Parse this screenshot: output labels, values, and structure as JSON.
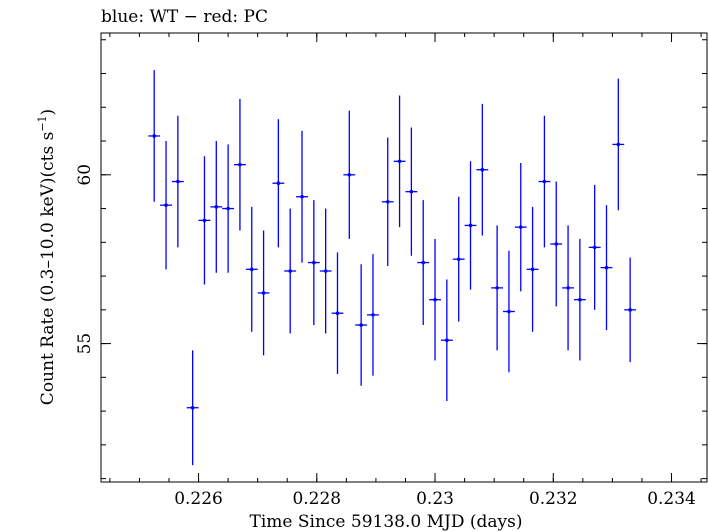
{
  "chart_data": {
    "type": "scatter",
    "title": "blue: WT − red: PC",
    "xlabel": "Time Since 59138.0 MJD (days)",
    "ylabel_main": "Count Rate (0.3–10.0 keV)(cts s",
    "ylabel_exp": "−1",
    "ylabel_tail": ")",
    "xlim": [
      0.22435,
      0.2346
    ],
    "ylim": [
      50.9,
      64.2
    ],
    "x_ticks": [
      {
        "value": 0.226,
        "label": "0.226"
      },
      {
        "value": 0.228,
        "label": "0.228"
      },
      {
        "value": 0.23,
        "label": "0.23"
      },
      {
        "value": 0.232,
        "label": "0.232"
      },
      {
        "value": 0.234,
        "label": "0.234"
      }
    ],
    "y_ticks": [
      {
        "value": 55,
        "label": "55"
      },
      {
        "value": 60,
        "label": "60"
      }
    ],
    "x_minor_step": 0.0005,
    "y_minor_step": 1,
    "x_halfwidth": 0.0001,
    "series": [
      {
        "color": "#0000ff",
        "points": [
          {
            "x": 0.22525,
            "y": 61.15,
            "err": 1.95
          },
          {
            "x": 0.22545,
            "y": 59.1,
            "err": 1.9
          },
          {
            "x": 0.22565,
            "y": 59.8,
            "err": 1.95
          },
          {
            "x": 0.2259,
            "y": 53.1,
            "err": 1.7
          },
          {
            "x": 0.2261,
            "y": 58.65,
            "err": 1.9
          },
          {
            "x": 0.2263,
            "y": 59.05,
            "err": 1.95
          },
          {
            "x": 0.2265,
            "y": 59.0,
            "err": 1.9
          },
          {
            "x": 0.2267,
            "y": 60.3,
            "err": 1.95
          },
          {
            "x": 0.2269,
            "y": 57.2,
            "err": 1.85
          },
          {
            "x": 0.2271,
            "y": 56.5,
            "err": 1.85
          },
          {
            "x": 0.22735,
            "y": 59.75,
            "err": 1.9
          },
          {
            "x": 0.22755,
            "y": 57.15,
            "err": 1.85
          },
          {
            "x": 0.22775,
            "y": 59.35,
            "err": 1.95
          },
          {
            "x": 0.22795,
            "y": 57.4,
            "err": 1.85
          },
          {
            "x": 0.22815,
            "y": 57.15,
            "err": 1.85
          },
          {
            "x": 0.22835,
            "y": 55.9,
            "err": 1.8
          },
          {
            "x": 0.22855,
            "y": 60.0,
            "err": 1.9
          },
          {
            "x": 0.22875,
            "y": 55.55,
            "err": 1.8
          },
          {
            "x": 0.22895,
            "y": 55.85,
            "err": 1.8
          },
          {
            "x": 0.2292,
            "y": 59.2,
            "err": 1.9
          },
          {
            "x": 0.2294,
            "y": 60.4,
            "err": 1.95
          },
          {
            "x": 0.2296,
            "y": 59.5,
            "err": 1.9
          },
          {
            "x": 0.2298,
            "y": 57.4,
            "err": 1.85
          },
          {
            "x": 0.23,
            "y": 56.3,
            "err": 1.8
          },
          {
            "x": 0.2302,
            "y": 55.1,
            "err": 1.8
          },
          {
            "x": 0.2304,
            "y": 57.5,
            "err": 1.85
          },
          {
            "x": 0.2306,
            "y": 58.5,
            "err": 1.9
          },
          {
            "x": 0.2308,
            "y": 60.15,
            "err": 1.95
          },
          {
            "x": 0.23105,
            "y": 56.65,
            "err": 1.85
          },
          {
            "x": 0.23125,
            "y": 55.95,
            "err": 1.8
          },
          {
            "x": 0.23145,
            "y": 58.45,
            "err": 1.9
          },
          {
            "x": 0.23165,
            "y": 57.2,
            "err": 1.85
          },
          {
            "x": 0.23185,
            "y": 59.8,
            "err": 1.95
          },
          {
            "x": 0.23205,
            "y": 57.95,
            "err": 1.85
          },
          {
            "x": 0.23225,
            "y": 56.65,
            "err": 1.85
          },
          {
            "x": 0.23245,
            "y": 56.3,
            "err": 1.8
          },
          {
            "x": 0.2327,
            "y": 57.85,
            "err": 1.85
          },
          {
            "x": 0.2329,
            "y": 57.25,
            "err": 1.85
          },
          {
            "x": 0.2331,
            "y": 60.9,
            "err": 1.95
          },
          {
            "x": 0.2333,
            "y": 56.0,
            "err": 1.55
          }
        ]
      }
    ]
  }
}
